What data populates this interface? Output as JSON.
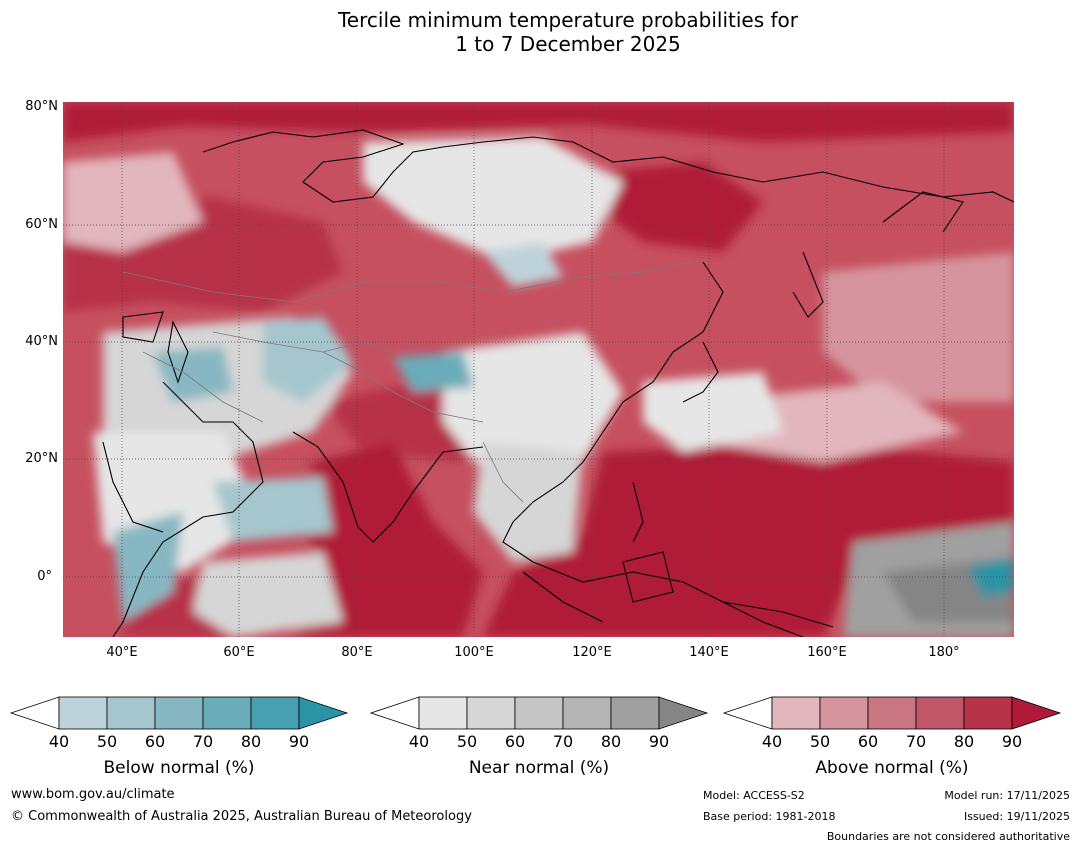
{
  "title": {
    "line1": "Tercile minimum temperature probabilities for",
    "line2": "1 to 7 December 2025"
  },
  "map": {
    "lat_labels": [
      "80°N",
      "60°N",
      "40°N",
      "20°N",
      "0°"
    ],
    "lon_labels": [
      "40°E",
      "60°E",
      "80°E",
      "100°E",
      "120°E",
      "140°E",
      "160°E",
      "180°"
    ]
  },
  "legends": [
    {
      "name": "Below normal (%)",
      "ticks": [
        "40",
        "50",
        "60",
        "70",
        "80",
        "90"
      ],
      "colors": [
        "#ffffff",
        "#bed3d9",
        "#a5c6cd",
        "#87b7c2",
        "#6aacb9",
        "#47a0b0",
        "#2b93a6"
      ]
    },
    {
      "name": "Near normal (%)",
      "ticks": [
        "40",
        "50",
        "60",
        "70",
        "80",
        "90"
      ],
      "colors": [
        "#ffffff",
        "#e6e6e6",
        "#d6d6d6",
        "#c6c6c6",
        "#b4b4b4",
        "#a0a0a0",
        "#858585"
      ]
    },
    {
      "name": "Above normal (%)",
      "ticks": [
        "40",
        "50",
        "60",
        "70",
        "80",
        "90"
      ],
      "colors": [
        "#ffffff",
        "#e2b6bd",
        "#d6949e",
        "#c97582",
        "#bf5768",
        "#b7334a",
        "#b01a38"
      ]
    }
  ],
  "footer": {
    "website": "www.bom.gov.au/climate",
    "copyright": "© Commonwealth of Australia 2025, Australian Bureau of Meteorology",
    "model": "Model: ACCESS-S2",
    "base_period": "Base period: 1981-2018",
    "model_run": "Model run: 17/11/2025",
    "issued": "Issued: 19/11/2025",
    "disclaimer": "Boundaries are not considered authoritative"
  }
}
